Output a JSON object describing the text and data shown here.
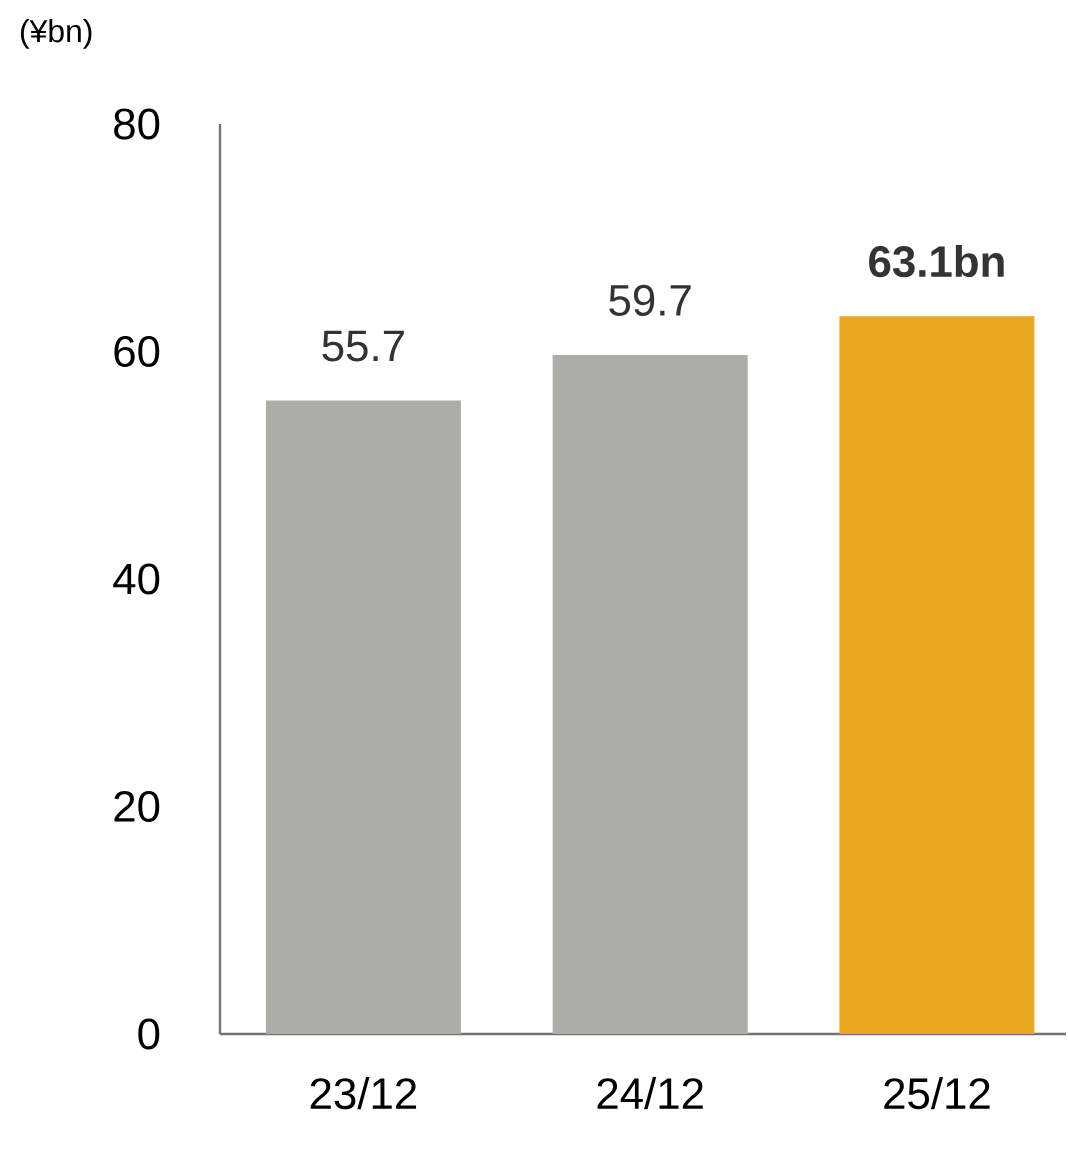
{
  "chart_data": {
    "type": "bar",
    "ylabel": "(¥bn)",
    "categories": [
      "23/12",
      "24/12",
      "25/12"
    ],
    "values": [
      55.7,
      59.7,
      63.1
    ],
    "colors": [
      "#adada8",
      "#adada8",
      "#e8a820"
    ],
    "value_labels": [
      "55.7",
      "59.7",
      "**63.1bn**"
    ],
    "ylim": [
      0,
      80
    ],
    "yticks": [
      0,
      20,
      40,
      60,
      80
    ],
    "grid": false
  }
}
